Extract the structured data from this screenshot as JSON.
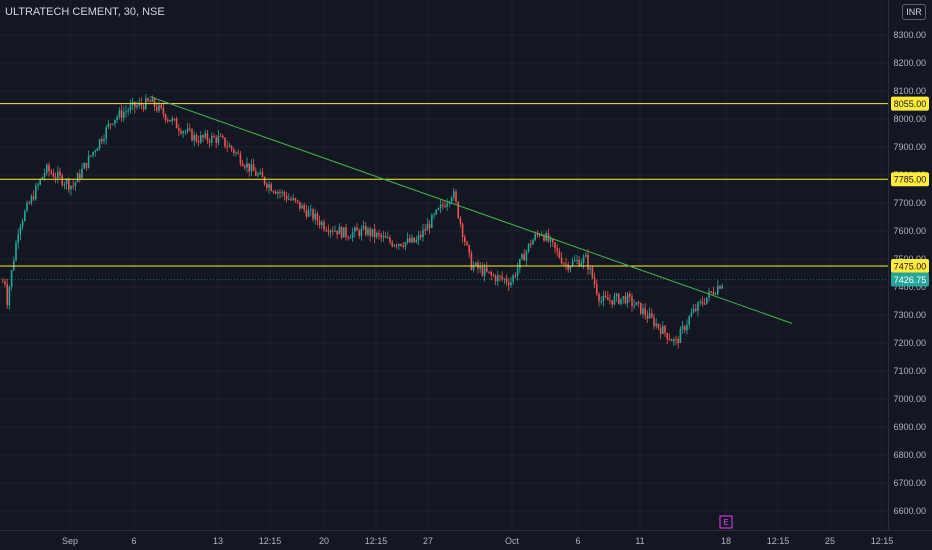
{
  "header": {
    "symbol_title": "ULTRATECH CEMENT, 30, NSE",
    "currency": "INR"
  },
  "colors": {
    "background": "#131722",
    "up": "#26a69a",
    "down": "#ef5350",
    "level_line": "#ffeb3b",
    "trend_line": "#4caf50",
    "grid": "#1e222d",
    "axis_text": "#b2b5be"
  },
  "chart_data": {
    "type": "candlestick",
    "title": "ULTRATECH CEMENT, 30, NSE",
    "ylim": [
      6530,
      8420
    ],
    "y_ticks": [
      8300,
      8200,
      8100,
      8000,
      7900,
      7800,
      7700,
      7600,
      7500,
      7400,
      7300,
      7200,
      7100,
      7000,
      6900,
      6800,
      6700,
      6600
    ],
    "x_ticks": [
      "Sep",
      "6",
      "13",
      "12:15",
      "20",
      "12:15",
      "27",
      "Oct",
      "6",
      "11",
      "18",
      "12:15",
      "25",
      "12:15"
    ],
    "horizontal_levels": [
      8055.0,
      7785.0,
      7475.0
    ],
    "current_price": "7426.75",
    "price_path": [
      [
        "Sep 1",
        7320
      ],
      [
        "Sep 2",
        7620
      ],
      [
        "Sep 3",
        7820
      ],
      [
        "Sep 4",
        7760
      ],
      [
        "Sep 5",
        7900
      ],
      [
        "Sep 6",
        8000
      ],
      [
        "Sep 7",
        8040
      ],
      [
        "Sep 8",
        8060
      ],
      [
        "Sep 9",
        7980
      ],
      [
        "Sep 10",
        7930
      ],
      [
        "Sep 13",
        7930
      ],
      [
        "Sep 14",
        7890
      ],
      [
        "Sep 15",
        7820
      ],
      [
        "Sep 16",
        7760
      ],
      [
        "Sep 17",
        7700
      ],
      [
        "Sep 20",
        7620
      ],
      [
        "Sep 21",
        7590
      ],
      [
        "Sep 22",
        7600
      ],
      [
        "Sep 23",
        7560
      ],
      [
        "Sep 24",
        7560
      ],
      [
        "Sep 27",
        7740
      ],
      [
        "Sep 28",
        7480
      ],
      [
        "Sep 29",
        7440
      ],
      [
        "Sep 30",
        7420
      ],
      [
        "Oct 1",
        7560
      ],
      [
        "Oct 4",
        7600
      ],
      [
        "Oct 5",
        7480
      ],
      [
        "Oct 6",
        7500
      ],
      [
        "Oct 7",
        7350
      ],
      [
        "Oct 8",
        7360
      ],
      [
        "Oct 11",
        7320
      ],
      [
        "Oct 12",
        7200
      ],
      [
        "Oct 13",
        7300
      ],
      [
        "Oct 14",
        7360
      ],
      [
        "Oct 18",
        7420
      ]
    ],
    "trend_line": {
      "start": [
        "Sep 8",
        8080
      ],
      "end": [
        "Oct 27",
        7270
      ]
    },
    "marker_label": "E"
  }
}
